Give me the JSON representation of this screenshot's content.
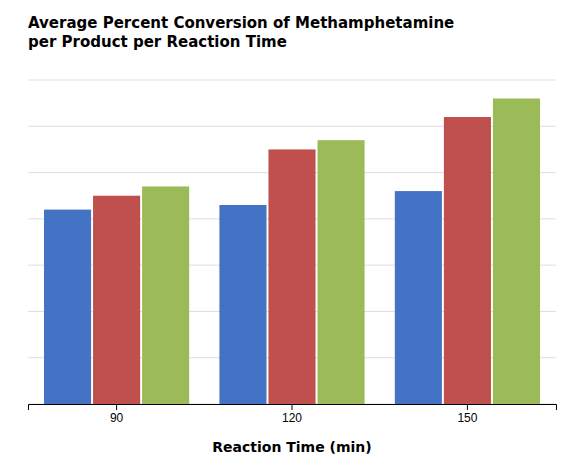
{
  "chart_data": {
    "type": "bar",
    "title": "Average Percent Conversion of Methamphetamine\nper Product per Reaction Time",
    "xlabel": "Reaction Time (min)",
    "categories": [
      90,
      120,
      150
    ],
    "series": [
      {
        "color": "#4472C4",
        "values": [
          42,
          43,
          46
        ]
      },
      {
        "color": "#C0504D",
        "values": [
          45,
          55,
          62
        ]
      },
      {
        "color": "#9BBB59",
        "values": [
          47,
          57,
          66
        ]
      }
    ],
    "ylim": [
      0,
      70
    ],
    "yticks": [
      0,
      10,
      20,
      30,
      40,
      50,
      60,
      70
    ],
    "grid": true,
    "tick_labels": "x"
  }
}
